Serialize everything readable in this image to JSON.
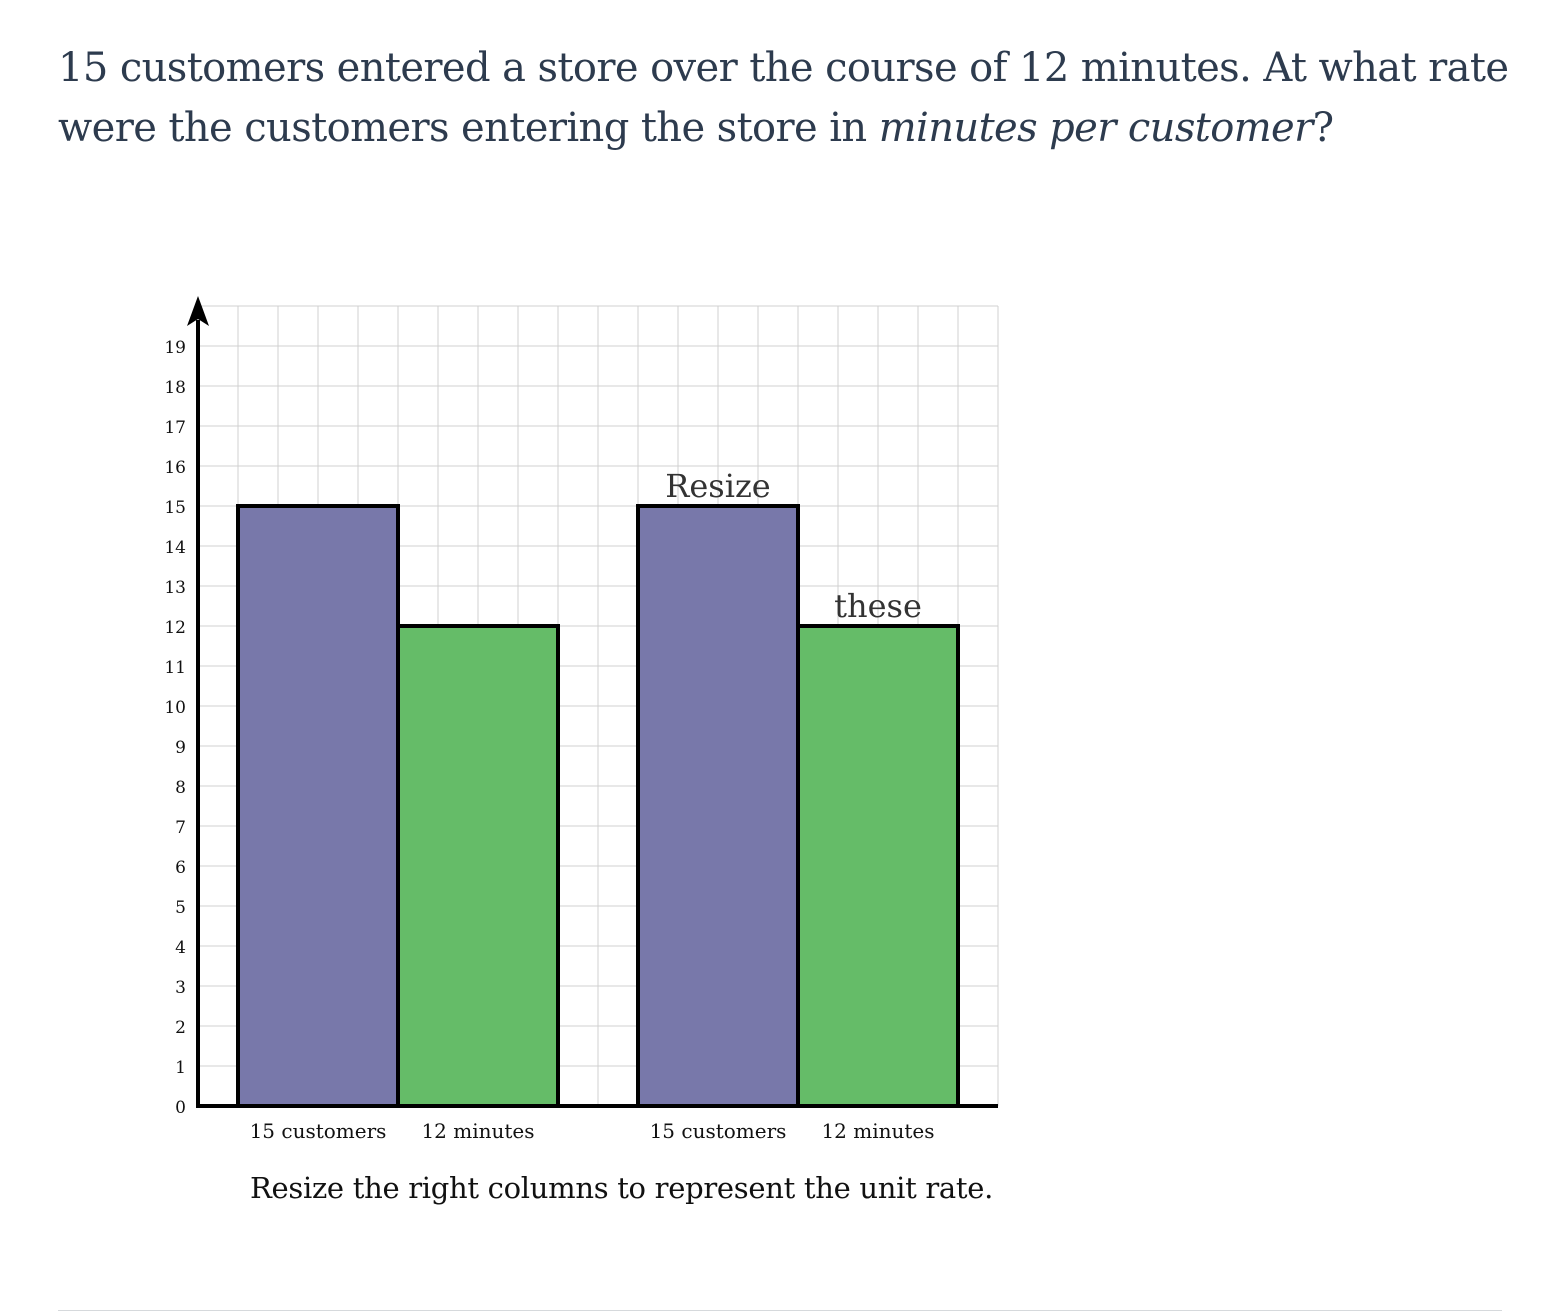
{
  "question": {
    "text_before": "15 customers entered a store over the course of 12 minutes. At what rate were the customers entering the store in ",
    "text_emphasis": "minutes per customer",
    "text_after": "?"
  },
  "chart_data": {
    "type": "bar",
    "ylim": [
      0,
      20
    ],
    "y_ticks": [
      "0",
      "1",
      "2",
      "3",
      "4",
      "5",
      "6",
      "7",
      "8",
      "9",
      "10",
      "11",
      "12",
      "13",
      "14",
      "15",
      "16",
      "17",
      "18",
      "19"
    ],
    "grid": true,
    "bars": [
      {
        "label": "15 customers",
        "value": 15,
        "color": "#7878aa",
        "resizable": false,
        "annotation": ""
      },
      {
        "label": "12 minutes",
        "value": 12,
        "color": "#65bc68",
        "resizable": false,
        "annotation": ""
      },
      {
        "label": "15 customers",
        "value": 15,
        "color": "#7878aa",
        "resizable": true,
        "annotation": "Resize"
      },
      {
        "label": "12 minutes",
        "value": 12,
        "color": "#65bc68",
        "resizable": true,
        "annotation": "these"
      }
    ]
  },
  "caption": "Resize the right columns to represent the unit rate."
}
